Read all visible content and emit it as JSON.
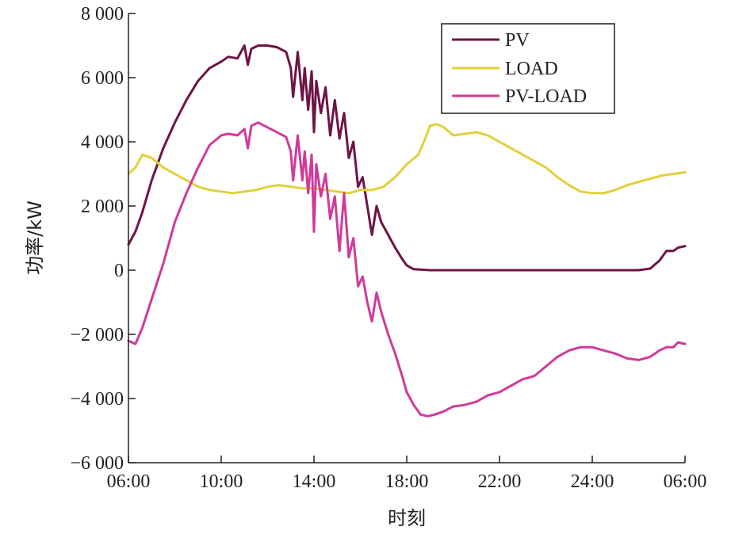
{
  "chart_data": {
    "type": "line",
    "xlabel": "时刻",
    "ylabel": "功率/kW",
    "ylim": [
      -6000,
      8000
    ],
    "y_ticks": [
      {
        "value": -6000,
        "label": "−6 000"
      },
      {
        "value": -4000,
        "label": "−4 000"
      },
      {
        "value": -2000,
        "label": "−2 000"
      },
      {
        "value": 0,
        "label": "0"
      },
      {
        "value": 2000,
        "label": "2 000"
      },
      {
        "value": 4000,
        "label": "4 000"
      },
      {
        "value": 6000,
        "label": "6 000"
      },
      {
        "value": 8000,
        "label": "8 000"
      }
    ],
    "xlim": [
      6,
      30
    ],
    "x_ticks": [
      {
        "value": 6,
        "label": "06:00"
      },
      {
        "value": 10,
        "label": "10:00"
      },
      {
        "value": 14,
        "label": "14:00"
      },
      {
        "value": 18,
        "label": "18:00"
      },
      {
        "value": 22,
        "label": "22:00"
      },
      {
        "value": 26,
        "label": "24:00"
      },
      {
        "value": 30,
        "label": "06:00"
      }
    ],
    "grid": false,
    "legend_position": "top-right",
    "series": [
      {
        "name": "PV",
        "color": "#6e1446",
        "x": [
          6.0,
          6.3,
          6.6,
          7.0,
          7.5,
          8.0,
          8.5,
          9.0,
          9.5,
          10.0,
          10.3,
          10.7,
          11.0,
          11.15,
          11.3,
          11.6,
          12.0,
          12.4,
          12.8,
          13.0,
          13.1,
          13.3,
          13.5,
          13.6,
          13.75,
          13.9,
          14.0,
          14.1,
          14.3,
          14.5,
          14.7,
          14.9,
          15.1,
          15.3,
          15.5,
          15.7,
          15.9,
          16.1,
          16.3,
          16.5,
          16.7,
          16.9,
          17.2,
          17.5,
          17.8,
          18.0,
          18.3,
          19.0,
          20.0,
          22.0,
          24.0,
          26.0,
          28.0,
          28.5,
          28.9,
          29.2,
          29.5,
          29.7,
          30.0
        ],
        "y": [
          800,
          1200,
          1800,
          2800,
          3800,
          4600,
          5300,
          5900,
          6300,
          6500,
          6650,
          6600,
          7000,
          6400,
          6900,
          7000,
          7000,
          6950,
          6800,
          6300,
          5400,
          6800,
          5300,
          6300,
          5000,
          6200,
          4300,
          5900,
          4900,
          5700,
          4200,
          5300,
          4100,
          4900,
          3500,
          4000,
          2600,
          2900,
          2000,
          1100,
          2000,
          1500,
          1100,
          700,
          350,
          150,
          30,
          0,
          0,
          0,
          0,
          0,
          0,
          50,
          300,
          600,
          600,
          700,
          750
        ]
      },
      {
        "name": "LOAD",
        "color": "#e2d03a",
        "x": [
          6.0,
          6.3,
          6.6,
          7.0,
          7.5,
          8.0,
          8.5,
          9.0,
          9.5,
          10.0,
          10.5,
          11.0,
          11.5,
          12.0,
          12.5,
          13.0,
          13.5,
          14.0,
          14.5,
          15.0,
          15.5,
          16.0,
          16.5,
          17.0,
          17.5,
          18.0,
          18.5,
          18.8,
          19.0,
          19.3,
          19.6,
          20.0,
          20.5,
          21.0,
          21.5,
          22.0,
          22.5,
          23.0,
          23.5,
          24.0,
          24.5,
          25.0,
          25.5,
          26.0,
          26.5,
          27.0,
          27.5,
          28.0,
          28.5,
          29.0,
          29.5,
          30.0
        ],
        "y": [
          3000,
          3200,
          3600,
          3500,
          3200,
          3000,
          2800,
          2600,
          2500,
          2450,
          2400,
          2450,
          2500,
          2600,
          2650,
          2600,
          2550,
          2550,
          2500,
          2450,
          2400,
          2500,
          2500,
          2600,
          2900,
          3300,
          3600,
          4100,
          4500,
          4550,
          4450,
          4200,
          4250,
          4300,
          4200,
          4000,
          3800,
          3600,
          3400,
          3200,
          2900,
          2650,
          2450,
          2400,
          2400,
          2500,
          2650,
          2750,
          2850,
          2950,
          3000,
          3050
        ]
      },
      {
        "name": "PV-LOAD",
        "color": "#d03a9a",
        "x": [
          6.0,
          6.3,
          6.6,
          7.0,
          7.5,
          8.0,
          8.5,
          9.0,
          9.5,
          10.0,
          10.3,
          10.7,
          11.0,
          11.15,
          11.3,
          11.6,
          12.0,
          12.4,
          12.8,
          13.0,
          13.1,
          13.3,
          13.5,
          13.6,
          13.75,
          13.9,
          14.0,
          14.1,
          14.3,
          14.5,
          14.7,
          14.9,
          15.1,
          15.3,
          15.5,
          15.7,
          15.9,
          16.1,
          16.3,
          16.5,
          16.7,
          16.9,
          17.2,
          17.5,
          17.8,
          18.0,
          18.3,
          18.6,
          18.9,
          19.2,
          19.6,
          20.0,
          20.5,
          21.0,
          21.5,
          22.0,
          22.5,
          23.0,
          23.5,
          24.0,
          24.5,
          25.0,
          25.5,
          26.0,
          26.5,
          27.0,
          27.5,
          28.0,
          28.5,
          28.9,
          29.2,
          29.5,
          29.7,
          30.0
        ],
        "y": [
          -2200,
          -2300,
          -1800,
          -900,
          200,
          1500,
          2400,
          3200,
          3900,
          4200,
          4250,
          4200,
          4400,
          3800,
          4500,
          4600,
          4450,
          4300,
          4150,
          3700,
          2800,
          4200,
          2800,
          3700,
          2400,
          3600,
          1200,
          3300,
          2300,
          3000,
          1600,
          2300,
          600,
          2400,
          400,
          1000,
          -500,
          -200,
          -1000,
          -1600,
          -700,
          -1300,
          -2000,
          -2600,
          -3300,
          -3800,
          -4200,
          -4500,
          -4550,
          -4500,
          -4400,
          -4250,
          -4200,
          -4100,
          -3900,
          -3800,
          -3600,
          -3400,
          -3300,
          -3000,
          -2700,
          -2500,
          -2400,
          -2400,
          -2500,
          -2600,
          -2750,
          -2800,
          -2700,
          -2500,
          -2400,
          -2400,
          -2250,
          -2300
        ]
      }
    ]
  }
}
